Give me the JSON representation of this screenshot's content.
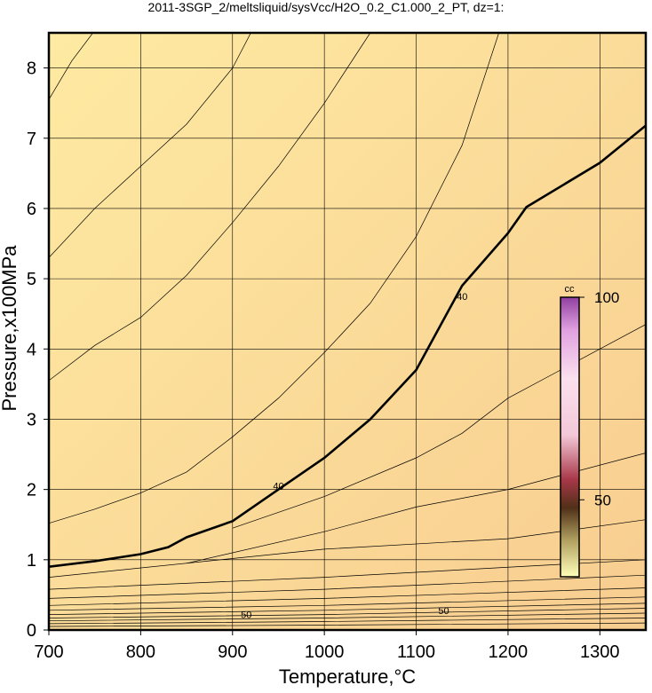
{
  "chart_data": {
    "type": "contour",
    "title": "2011-3SGP_2/meltsliquid/sysVcc/H2O_0.2_C1.000_2_PT, dz=1:",
    "x_label": "Temperature,°C",
    "y_label": "Pressure,x100MPa",
    "xlim": [
      700,
      1350
    ],
    "ylim": [
      0,
      8.5
    ],
    "xticks": [
      700,
      800,
      900,
      1000,
      1100,
      1200,
      1300
    ],
    "yticks": [
      0,
      1,
      2,
      3,
      4,
      5,
      6,
      7,
      8
    ],
    "grid": true,
    "line_color": "#000000",
    "contours": [
      {
        "level": 40,
        "x": [
          700,
          750,
          800,
          830,
          850,
          900,
          950,
          1000,
          1050,
          1100,
          1150,
          1200,
          1220,
          1300,
          1350
        ],
        "y": [
          0.9,
          0.98,
          1.08,
          1.18,
          1.32,
          1.55,
          2.0,
          2.45,
          3.0,
          3.7,
          4.9,
          5.65,
          6.02,
          6.65,
          7.18
        ]
      },
      {
        "x": [
          700,
          750,
          800,
          850,
          900,
          950,
          1000,
          1050,
          1100,
          1150,
          1190
        ],
        "y": [
          1.52,
          1.72,
          1.95,
          2.25,
          2.75,
          3.3,
          3.95,
          4.65,
          5.6,
          6.9,
          8.5
        ]
      },
      {
        "x": [
          700,
          750,
          800,
          850,
          900,
          950,
          1000,
          1050
        ],
        "y": [
          3.55,
          4.05,
          4.45,
          5.05,
          5.8,
          6.6,
          7.5,
          8.5
        ]
      },
      {
        "x": [
          700,
          750,
          800,
          850,
          900,
          920
        ],
        "y": [
          5.3,
          6.0,
          6.6,
          7.2,
          8.0,
          8.5
        ]
      },
      {
        "x": [
          700,
          725,
          748
        ],
        "y": [
          7.55,
          8.1,
          8.5
        ]
      },
      {
        "x": [
          900,
          1000,
          1100,
          1150,
          1200,
          1250,
          1350
        ],
        "y": [
          1.45,
          1.9,
          2.45,
          2.8,
          3.3,
          3.65,
          4.35
        ]
      },
      {
        "x": [
          850,
          1000,
          1100,
          1200,
          1350
        ],
        "y": [
          0.95,
          1.4,
          1.75,
          2.0,
          2.52
        ]
      },
      {
        "x": [
          700,
          1000,
          1200,
          1350
        ],
        "y": [
          0.75,
          1.15,
          1.3,
          1.57
        ]
      },
      {
        "x": [
          700,
          1000,
          1350
        ],
        "y": [
          0.58,
          0.75,
          1.0
        ]
      },
      {
        "x": [
          700,
          1000,
          1350
        ],
        "y": [
          0.45,
          0.58,
          0.78
        ]
      },
      {
        "x": [
          700,
          1000,
          1350
        ],
        "y": [
          0.35,
          0.45,
          0.6
        ]
      },
      {
        "x": [
          700,
          1000,
          1350
        ],
        "y": [
          0.28,
          0.35,
          0.47
        ]
      },
      {
        "x": [
          700,
          1000,
          1350
        ],
        "y": [
          0.22,
          0.28,
          0.38
        ]
      },
      {
        "x": [
          700,
          1000,
          1350
        ],
        "y": [
          0.17,
          0.22,
          0.31
        ]
      },
      {
        "x": [
          700,
          1000,
          1350
        ],
        "y": [
          0.13,
          0.17,
          0.24
        ]
      },
      {
        "x": [
          700,
          1000,
          1350
        ],
        "y": [
          0.09,
          0.12,
          0.17
        ]
      },
      {
        "x": [
          700,
          1000,
          1350
        ],
        "y": [
          0.05,
          0.07,
          0.1
        ]
      }
    ],
    "contour_labels": [
      {
        "value": 40,
        "x": 950,
        "y": 2.05
      },
      {
        "value": 40,
        "x": 1150,
        "y": 4.75
      },
      {
        "value": 50,
        "x": 915,
        "y": 0.22
      },
      {
        "value": 50,
        "x": 1130,
        "y": 0.28
      }
    ],
    "colorbar": {
      "label": "cc",
      "lim": [
        31,
        100
      ],
      "ticks": [
        50,
        100
      ],
      "stops": [
        [
          31,
          "#ffffb8"
        ],
        [
          40,
          "#b0a060"
        ],
        [
          48,
          "#503018"
        ],
        [
          55,
          "#a83848"
        ],
        [
          66,
          "#f4c8d8"
        ],
        [
          80,
          "#fbe0ee"
        ],
        [
          92,
          "#e0a0e0"
        ],
        [
          100,
          "#9040a0"
        ]
      ]
    }
  }
}
